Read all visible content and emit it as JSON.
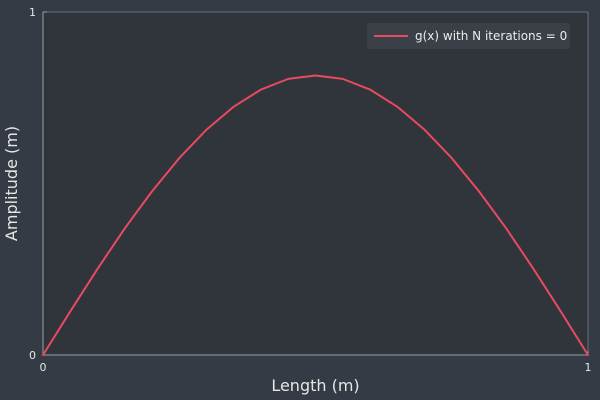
{
  "chart_data": {
    "type": "line",
    "title": "",
    "xlabel": "Length (m)",
    "ylabel": "Amplitude (m)",
    "xlim": [
      0,
      1
    ],
    "ylim": [
      0,
      1
    ],
    "x_ticks": [
      "0",
      "1"
    ],
    "y_ticks": [
      "0",
      "1"
    ],
    "grid": false,
    "legend_position": "top-right",
    "series": [
      {
        "name": "g(x) with N iterations = 0",
        "color": "#e84a5f",
        "x": [
          0,
          0.05,
          0.1,
          0.15,
          0.2,
          0.25,
          0.3,
          0.35,
          0.4,
          0.45,
          0.5,
          0.55,
          0.6,
          0.65,
          0.7,
          0.75,
          0.8,
          0.85,
          0.9,
          0.95,
          1
        ],
        "y": [
          0,
          0.127,
          0.251,
          0.369,
          0.477,
          0.574,
          0.657,
          0.724,
          0.774,
          0.805,
          0.815,
          0.805,
          0.774,
          0.724,
          0.657,
          0.574,
          0.477,
          0.369,
          0.251,
          0.127,
          0
        ]
      }
    ]
  },
  "colors": {
    "background": "#353b45",
    "plot_area": "#30343b",
    "axis": "#9aa0a8",
    "text": "#e6e6e6",
    "legend_bg": "#3a3f48"
  }
}
